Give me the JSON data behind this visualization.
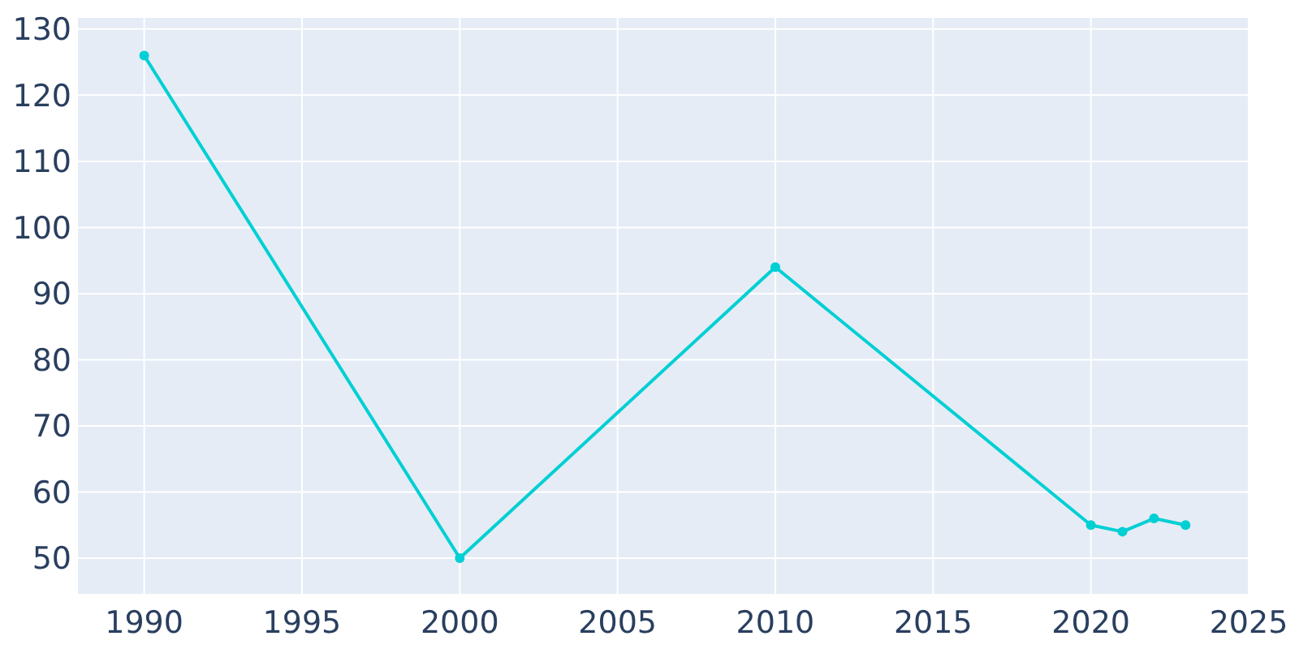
{
  "chart_data": {
    "type": "line",
    "x": [
      1990,
      2000,
      2010,
      2020,
      2021,
      2022,
      2023
    ],
    "series": [
      {
        "color": "#00cfd4",
        "values": [
          126,
          50,
          94,
          55,
          54,
          56,
          55
        ]
      }
    ],
    "xlim": [
      1987.9,
      2025
    ],
    "xticks": [
      1990,
      1995,
      2000,
      2005,
      2010,
      2015,
      2020,
      2025
    ],
    "ylim": [
      44.6,
      131.7
    ],
    "yticks": [
      50,
      60,
      70,
      80,
      90,
      100,
      110,
      120,
      130
    ],
    "grid": true,
    "marker": "circle",
    "line_style": "solid"
  }
}
